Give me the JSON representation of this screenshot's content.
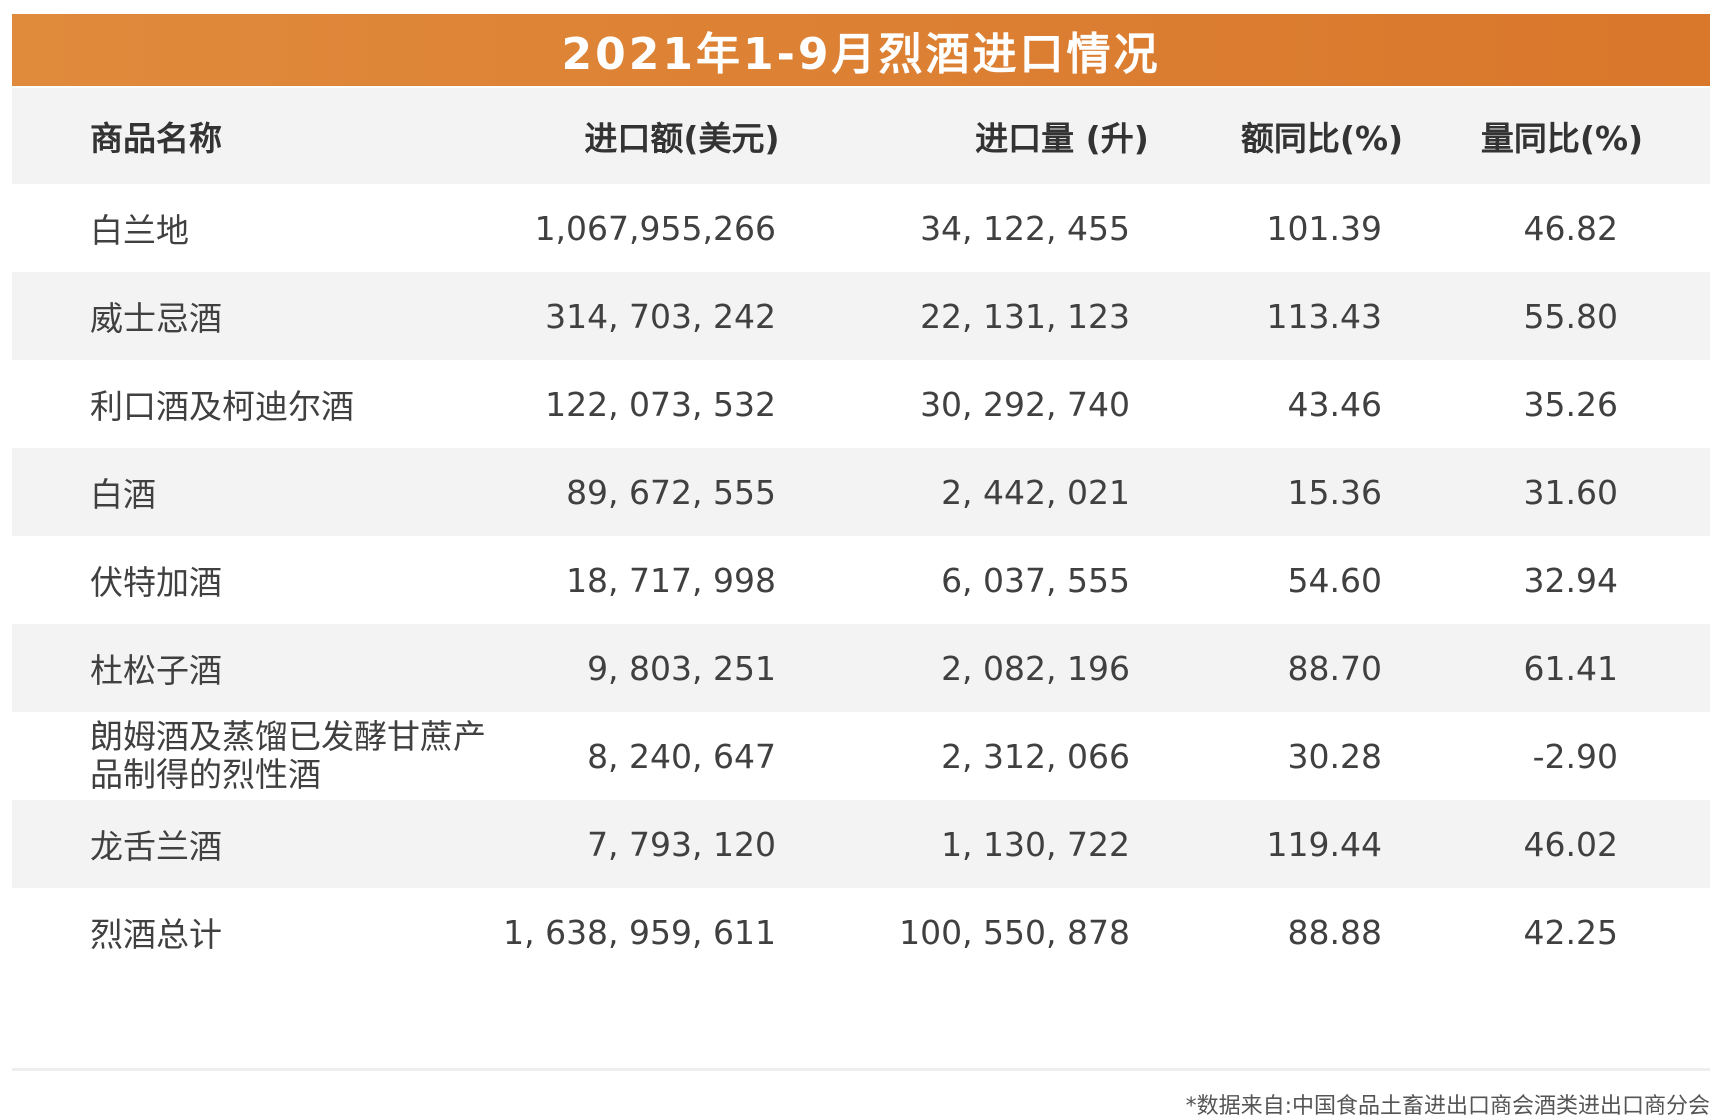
{
  "chart_data": {
    "type": "table",
    "title": "2021年1-9月烈酒进口情况",
    "columns": [
      "商品名称",
      "进口额(美元)",
      "进口量 (升)",
      "额同比(%)",
      "量同比(%)"
    ],
    "rows": [
      [
        "白兰地",
        "1,067,955,266",
        "34, 122, 455",
        "101.39",
        "46.82"
      ],
      [
        "威士忌酒",
        "314, 703, 242",
        "22, 131, 123",
        "113.43",
        "55.80"
      ],
      [
        "利口酒及柯迪尔酒",
        "122, 073, 532",
        "30, 292, 740",
        "43.46",
        "35.26"
      ],
      [
        "白酒",
        "89, 672, 555",
        "2, 442, 021",
        "15.36",
        "31.60"
      ],
      [
        "伏特加酒",
        "18, 717, 998",
        "6, 037, 555",
        "54.60",
        "32.94"
      ],
      [
        "杜松子酒",
        "9, 803, 251",
        "2, 082, 196",
        "88.70",
        "61.41"
      ],
      [
        "朗姆酒及蒸馏已发酵甘蔗产品制得的烈性酒",
        "8, 240, 647",
        "2, 312, 066",
        "30.28",
        "-2.90"
      ],
      [
        "龙舌兰酒",
        "7, 793, 120",
        "1, 130, 722",
        "119.44",
        "46.02"
      ],
      [
        "烈酒总计",
        "1, 638, 959, 611",
        "100, 550, 878",
        "88.88",
        "42.25"
      ]
    ],
    "footnote": "*数据来自:中国食品土畜进出口商会酒类进出口商分会"
  },
  "colors": {
    "title_bar": "#da7b2f",
    "alt_row": "#f3f3f3",
    "title_text": "#ffffff"
  }
}
